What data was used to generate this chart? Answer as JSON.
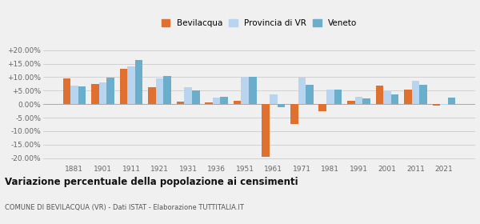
{
  "years": [
    1881,
    1901,
    1911,
    1921,
    1931,
    1936,
    1951,
    1961,
    1971,
    1981,
    1991,
    2001,
    2011,
    2021
  ],
  "bevilacqua": [
    9.5,
    7.5,
    13.0,
    6.2,
    1.0,
    0.8,
    1.2,
    -19.5,
    -7.5,
    -2.5,
    1.2,
    6.8,
    5.5,
    -0.5
  ],
  "provincia_vr": [
    6.8,
    8.0,
    14.0,
    9.5,
    6.2,
    2.5,
    10.0,
    3.5,
    9.8,
    5.5,
    2.8,
    4.8,
    8.8,
    -0.3
  ],
  "veneto": [
    6.7,
    9.8,
    16.5,
    10.5,
    5.0,
    2.8,
    10.0,
    -1.2,
    7.2,
    5.5,
    2.2,
    3.5,
    7.2,
    2.5
  ],
  "color_bevilacqua": "#e07030",
  "color_provincia": "#b8d4ee",
  "color_veneto": "#6aaecc",
  "title": "Variazione percentuale della popolazione ai censimenti",
  "subtitle": "COMUNE DI BEVILACQUA (VR) - Dati ISTAT - Elaborazione TUTTITALIA.IT",
  "ylim": [
    -22,
    22
  ],
  "yticks": [
    -20,
    -15,
    -10,
    -5,
    0,
    5,
    10,
    15,
    20
  ],
  "background_color": "#f0f0f0",
  "grid_color": "#cccccc"
}
